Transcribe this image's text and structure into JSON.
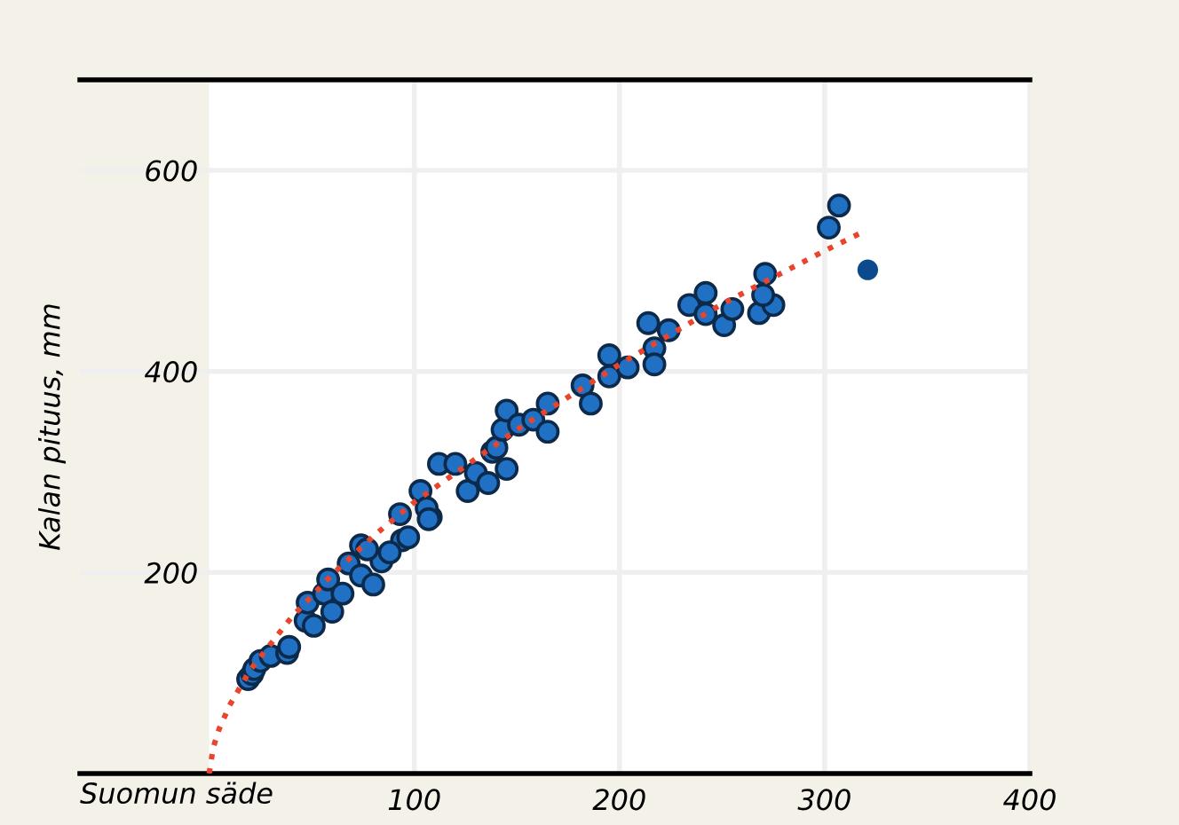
{
  "chart_data": {
    "type": "scatter",
    "xlabel": "Suomun säde",
    "ylabel": "Kalan pituus, mm",
    "xlim": [
      -63,
      400
    ],
    "ylim": [
      0,
      690
    ],
    "xticks": [
      100,
      200,
      300,
      400
    ],
    "yticks": [
      200,
      400,
      600
    ],
    "grid": true,
    "bands": [
      {
        "axis": "x",
        "from": 0,
        "to": 400,
        "color": "#ffffff"
      }
    ],
    "marker": "circle",
    "series": [
      {
        "color": "#2070c4",
        "x": [
          19,
          21,
          22,
          25,
          30,
          38,
          39,
          47,
          51,
          48,
          56,
          58,
          60,
          65,
          68,
          74,
          74,
          80,
          84,
          94,
          93,
          108,
          103,
          112,
          120,
          126,
          138,
          145,
          88,
          77,
          97,
          106,
          107,
          130,
          136,
          140,
          143,
          145,
          151,
          158,
          165,
          165,
          182,
          186,
          195,
          195,
          204,
          214,
          217,
          217,
          224,
          234,
          242,
          242,
          251,
          255,
          268,
          275,
          270,
          271,
          302,
          307
        ],
        "values": [
          94,
          99,
          104,
          112,
          117,
          120,
          126,
          152,
          147,
          170,
          179,
          193,
          161,
          179,
          209,
          227,
          197,
          188,
          211,
          232,
          258,
          255,
          281,
          308,
          308,
          281,
          320,
          303,
          220,
          223,
          235,
          264,
          253,
          299,
          289,
          324,
          342,
          361,
          347,
          352,
          368,
          340,
          386,
          368,
          416,
          395,
          404,
          448,
          423,
          407,
          441,
          466,
          478,
          457,
          446,
          462,
          458,
          466,
          476,
          497,
          543,
          565
        ]
      },
      {
        "color": "#0b4a8c",
        "x": [
          321
        ],
        "values": [
          501
        ]
      },
      {
        "type": "line",
        "color": "#e8452c",
        "line_style": "dotted",
        "marker": "none",
        "x": [
          0,
          2,
          5,
          10,
          20,
          40,
          60,
          80,
          100,
          150,
          200,
          250,
          300,
          320
        ],
        "values": [
          0,
          26,
          45,
          68,
          103,
          155,
          198,
          236,
          270,
          342,
          407,
          467,
          520,
          540
        ]
      }
    ]
  }
}
